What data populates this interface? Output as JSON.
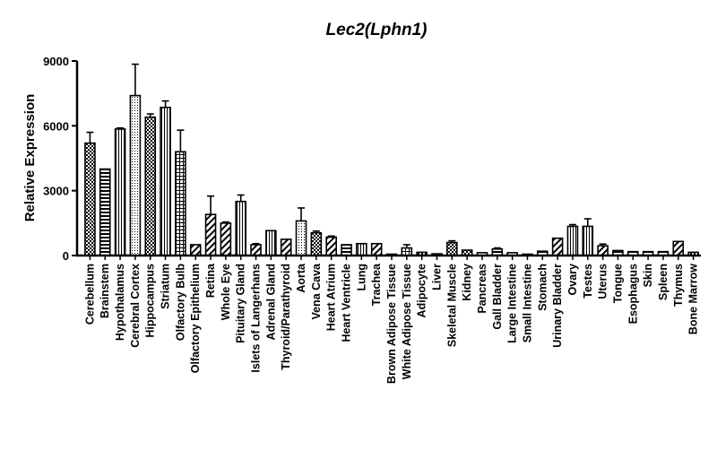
{
  "chart_data": {
    "type": "bar",
    "title": "Lec2(Lphn1)",
    "xlabel": "",
    "ylabel": "Relative Expression",
    "ylim": [
      0,
      9000
    ],
    "yticks": [
      "0",
      "3000",
      "6000",
      "9000"
    ],
    "grid": false,
    "legend": "none",
    "categories": [
      "Cerebellum",
      "Brainstem",
      "Hypothalamus",
      "Cerebral Cortex",
      "Hippocampus",
      "Striatum",
      "Olfactory Bulb",
      "Olfactory Epithelium",
      "Retina",
      "Whole Eye",
      "Pituitary Gland",
      "Islets of Langerhans",
      "Adrenal Gland",
      "Thyroid/Parathyroid",
      "Aorta",
      "Vena Cava",
      "Heart Atrium",
      "Heart Ventricle",
      "Lung",
      "Trachea",
      "Brown Adipose Tissue",
      "White Adipose Tissue",
      "Adipocyte",
      "Liver",
      "Skeletal Muscle",
      "Kidney",
      "Pancreas",
      "Gall Bladder",
      "Large Intestine",
      "Small Intestine",
      "Stomach",
      "Urinary Bladder",
      "Ovary",
      "Testes",
      "Uterus",
      "Tongue",
      "Esophagus",
      "Skin",
      "Spleen",
      "Thymus",
      "Bone Marrow"
    ],
    "values": [
      5200,
      4000,
      5850,
      7400,
      6400,
      6850,
      4800,
      500,
      1900,
      1500,
      2500,
      500,
      1150,
      750,
      1600,
      1050,
      850,
      500,
      550,
      550,
      50,
      350,
      150,
      80,
      600,
      250,
      130,
      300,
      130,
      40,
      200,
      800,
      1350,
      1350,
      450,
      230,
      180,
      180,
      180,
      650,
      150
    ],
    "errors": [
      500,
      0,
      50,
      1450,
      150,
      300,
      1000,
      0,
      850,
      50,
      300,
      50,
      0,
      0,
      600,
      80,
      50,
      0,
      0,
      0,
      0,
      150,
      0,
      0,
      80,
      0,
      0,
      50,
      0,
      0,
      0,
      0,
      80,
      350,
      80,
      0,
      0,
      0,
      0,
      0,
      0
    ],
    "patterns": [
      "checker",
      "hlines",
      "vlines",
      "dots",
      "checker",
      "vlines",
      "grid",
      "diagonal",
      "diagonal",
      "diagonal",
      "vlines",
      "diagonal",
      "vlines",
      "diagonal",
      "dots",
      "checker",
      "diagonal",
      "hlines",
      "vlines",
      "diagonal",
      "hlines",
      "grid",
      "checker",
      "hlines",
      "checker",
      "checker",
      "hlines",
      "hlines",
      "hlines",
      "diagonal",
      "hlines",
      "diagonal",
      "vlines",
      "vlines",
      "diagonal",
      "hlines",
      "hlines",
      "hlines",
      "hlines",
      "diagonal",
      "checker"
    ]
  },
  "colors": {
    "ink": "#000000",
    "background": "#ffffff"
  }
}
